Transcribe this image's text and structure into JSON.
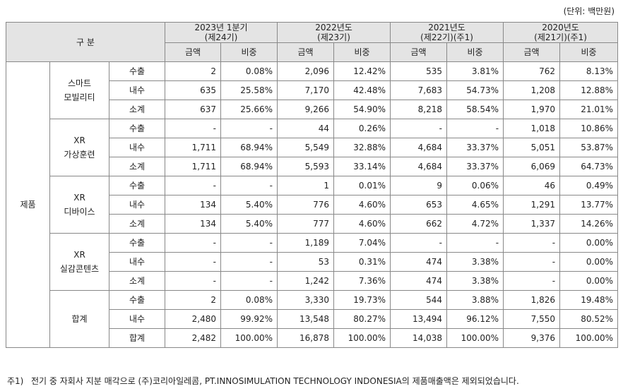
{
  "unit_label": "(단위: 백만원)",
  "header": {
    "category_label": "구 분",
    "periods": [
      {
        "line1": "2023년 1분기",
        "line2": "(제24기)"
      },
      {
        "line1": "2022년도",
        "line2": "(제23기)"
      },
      {
        "line1": "2021년도",
        "line2": "(제22기)(주1)"
      },
      {
        "line1": "2020년도",
        "line2": "(제21기)(주1)"
      }
    ],
    "sub_amount": "금액",
    "sub_ratio": "비중"
  },
  "top_category": "제품",
  "groups": [
    {
      "name_line1": "스마트",
      "name_line2": "모빌리티",
      "rows": [
        {
          "label": "수출",
          "v": [
            "2",
            "0.08%",
            "2,096",
            "12.42%",
            "535",
            "3.81%",
            "762",
            "8.13%"
          ]
        },
        {
          "label": "내수",
          "v": [
            "635",
            "25.58%",
            "7,170",
            "42.48%",
            "7,683",
            "54.73%",
            "1,208",
            "12.88%"
          ]
        },
        {
          "label": "소계",
          "v": [
            "637",
            "25.66%",
            "9,266",
            "54.90%",
            "8,218",
            "58.54%",
            "1,970",
            "21.01%"
          ]
        }
      ]
    },
    {
      "name_line1": "XR",
      "name_line2": "가상훈련",
      "rows": [
        {
          "label": "수출",
          "v": [
            "-",
            "-",
            "44",
            "0.26%",
            "-",
            "-",
            "1,018",
            "10.86%"
          ]
        },
        {
          "label": "내수",
          "v": [
            "1,711",
            "68.94%",
            "5,549",
            "32.88%",
            "4,684",
            "33.37%",
            "5,051",
            "53.87%"
          ]
        },
        {
          "label": "소계",
          "v": [
            "1,711",
            "68.94%",
            "5,593",
            "33.14%",
            "4,684",
            "33.37%",
            "6,069",
            "64.73%"
          ]
        }
      ]
    },
    {
      "name_line1": "XR",
      "name_line2": "디바이스",
      "rows": [
        {
          "label": "수출",
          "v": [
            "-",
            "-",
            "1",
            "0.01%",
            "9",
            "0.06%",
            "46",
            "0.49%"
          ]
        },
        {
          "label": "내수",
          "v": [
            "134",
            "5.40%",
            "776",
            "4.60%",
            "653",
            "4.65%",
            "1,291",
            "13.77%"
          ]
        },
        {
          "label": "소계",
          "v": [
            "134",
            "5.40%",
            "777",
            "4.60%",
            "662",
            "4.72%",
            "1,337",
            "14.26%"
          ]
        }
      ]
    },
    {
      "name_line1": "XR",
      "name_line2": "실감콘텐츠",
      "rows": [
        {
          "label": "수출",
          "v": [
            "-",
            "-",
            "1,189",
            "7.04%",
            "-",
            "-",
            "-",
            "0.00%"
          ]
        },
        {
          "label": "내수",
          "v": [
            "-",
            "-",
            "53",
            "0.31%",
            "474",
            "3.38%",
            "-",
            "0.00%"
          ]
        },
        {
          "label": "소계",
          "v": [
            "-",
            "-",
            "1,242",
            "7.36%",
            "474",
            "3.38%",
            "-",
            "0.00%"
          ]
        }
      ]
    },
    {
      "name_line1": "합계",
      "name_line2": "",
      "rows": [
        {
          "label": "수출",
          "v": [
            "2",
            "0.08%",
            "3,330",
            "19.73%",
            "544",
            "3.88%",
            "1,826",
            "19.48%"
          ]
        },
        {
          "label": "내수",
          "v": [
            "2,480",
            "99.92%",
            "13,548",
            "80.27%",
            "13,494",
            "96.12%",
            "7,550",
            "80.52%"
          ]
        },
        {
          "label": "합계",
          "v": [
            "2,482",
            "100.00%",
            "16,878",
            "100.00%",
            "14,038",
            "100.00%",
            "9,376",
            "100.00%"
          ]
        }
      ]
    }
  ],
  "footnote": {
    "label": "주1)",
    "text": "전기 중 자회사 지분 매각으로 (주)코리아일레콤, PT.INNOSIMULATION TECHNOLOGY INDONESIA의 제품매출액은 제외되었습니다."
  }
}
